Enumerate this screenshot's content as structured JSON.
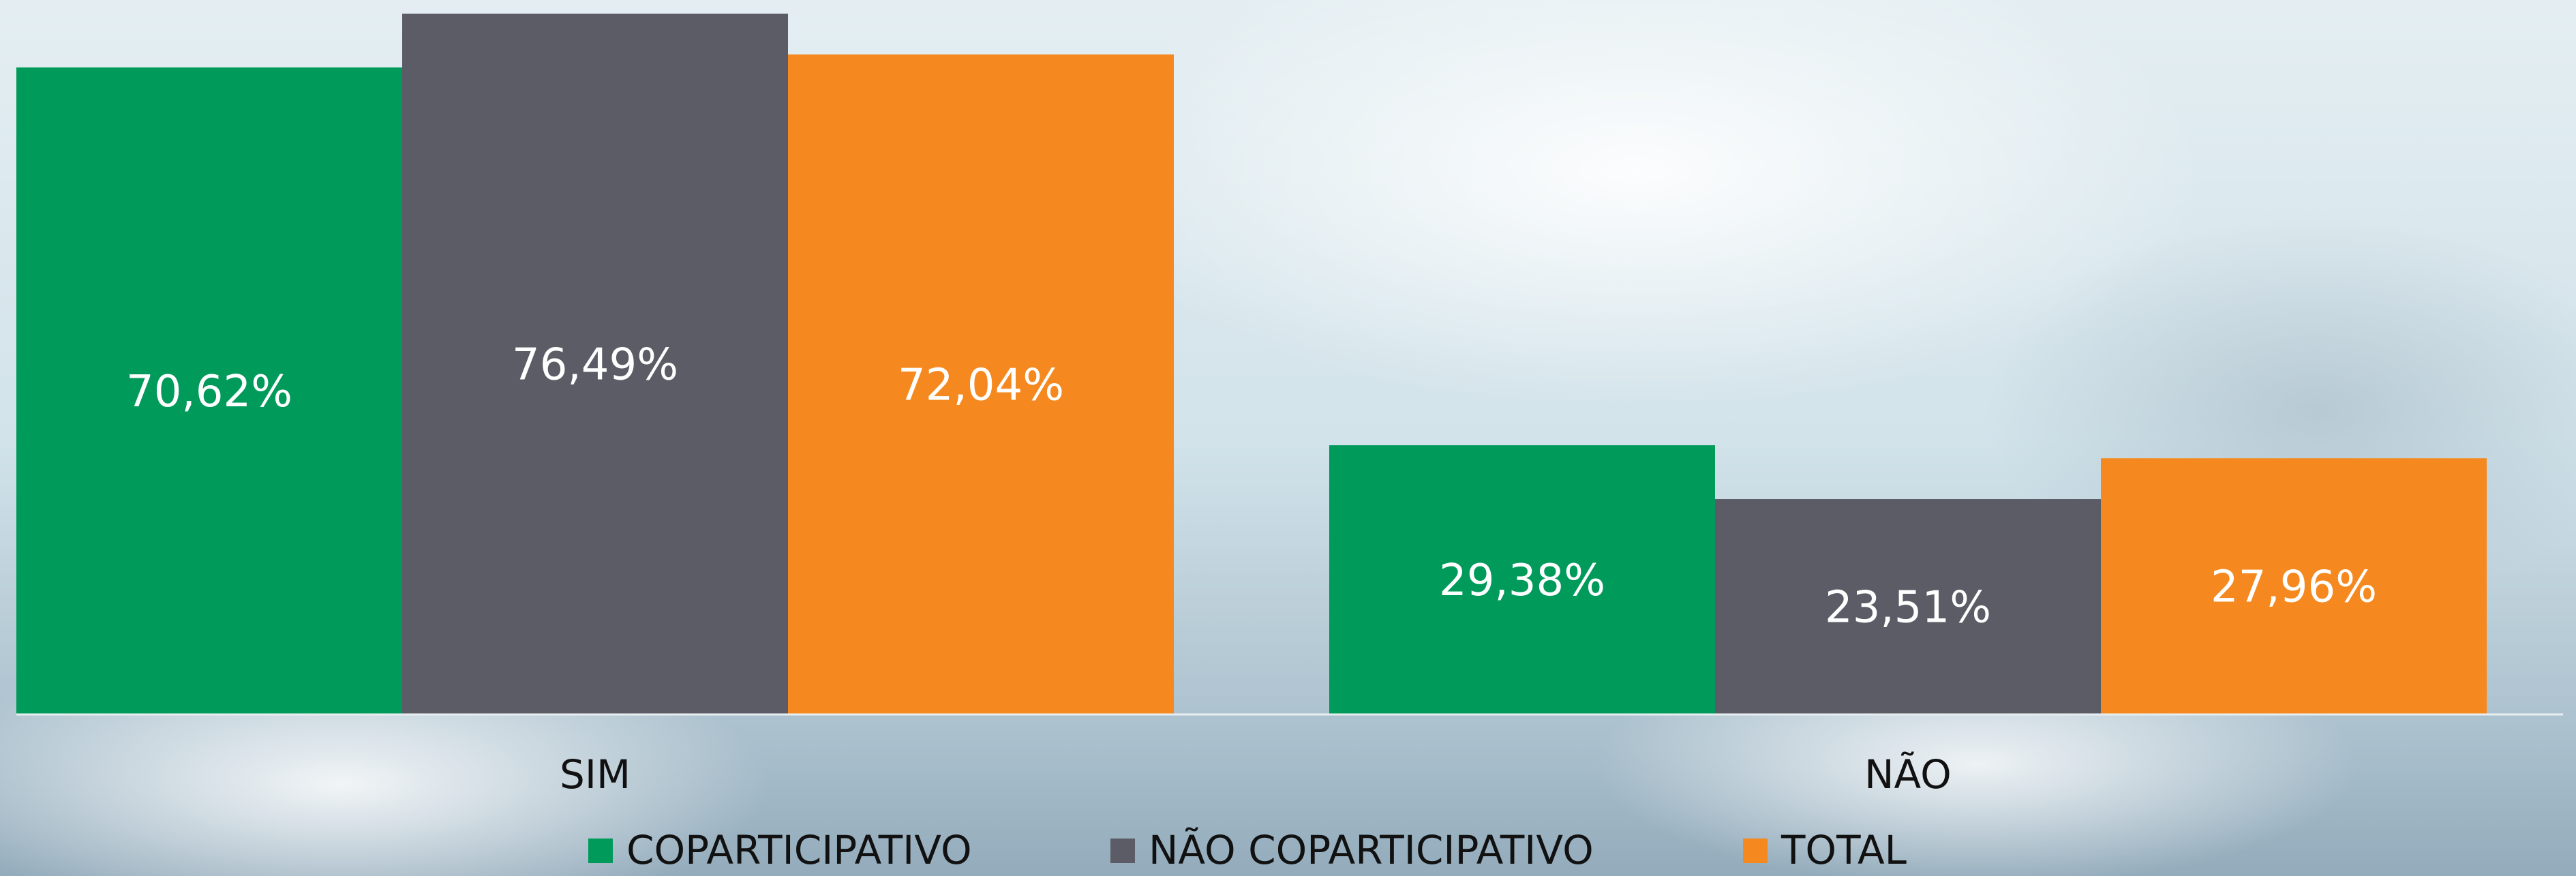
{
  "chart_data": {
    "type": "bar",
    "categories": [
      "SIM",
      "NÃO"
    ],
    "series": [
      {
        "name": "COPARTICIPATIVO",
        "color": "#009a5b",
        "values": [
          70.62,
          29.38
        ],
        "value_labels": [
          "70,62%",
          "29,38%"
        ]
      },
      {
        "name": "NÃO COPARTICIPATIVO",
        "color": "#5c5c66",
        "values": [
          76.49,
          23.51
        ],
        "value_labels": [
          "76,49%",
          "23,51%"
        ]
      },
      {
        "name": "TOTAL",
        "color": "#f5891f",
        "values": [
          72.04,
          27.96
        ],
        "value_labels": [
          "72,04%",
          "27,96%"
        ]
      }
    ]
  }
}
